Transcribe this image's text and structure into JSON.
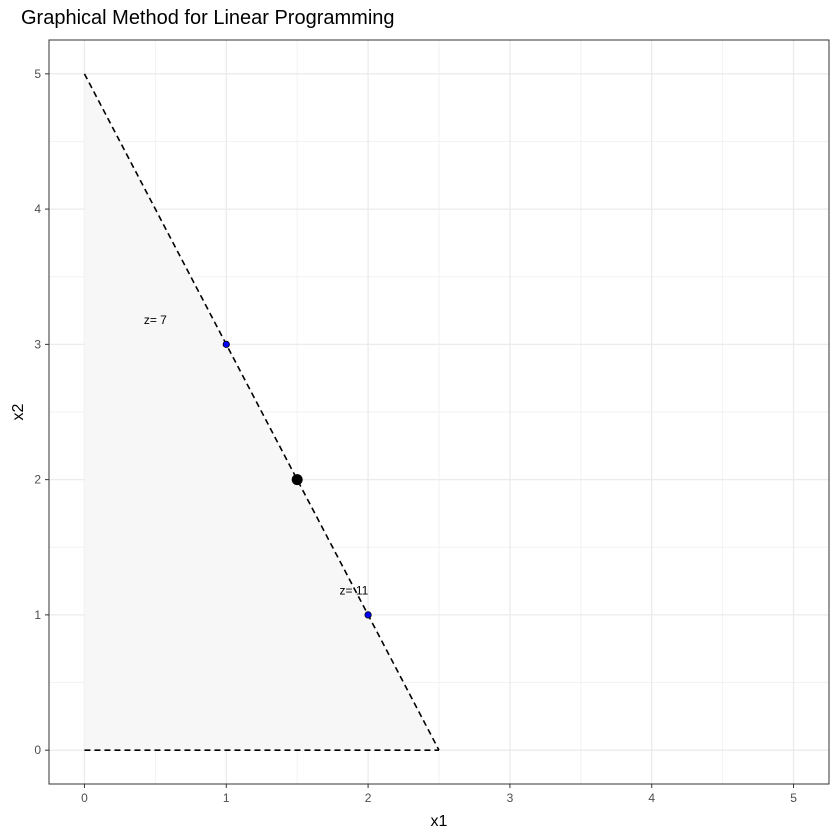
{
  "chart_data": {
    "type": "scatter",
    "title": "Graphical Method for Linear Programming",
    "xlabel": "x1",
    "ylabel": "x2",
    "xlim": [
      -0.25,
      5.25
    ],
    "ylim": [
      -0.25,
      5.25
    ],
    "x_ticks": [
      0,
      1,
      2,
      3,
      4,
      5
    ],
    "y_ticks": [
      0,
      1,
      2,
      3,
      4,
      5
    ],
    "grid": true,
    "feasible_region": {
      "vertices": [
        [
          0,
          0
        ],
        [
          0,
          5
        ],
        [
          2.5,
          0
        ]
      ],
      "fill": "#f7f7f7"
    },
    "constraint_lines": [
      {
        "x": [
          0,
          2.5
        ],
        "y": [
          5,
          0
        ],
        "style": "dashed",
        "color": "#000000"
      },
      {
        "x": [
          0,
          2.5
        ],
        "y": [
          0,
          0
        ],
        "style": "dashed",
        "color": "#000000"
      }
    ],
    "points": [
      {
        "x": 1,
        "y": 3,
        "color": "#0000ff",
        "size": "small"
      },
      {
        "x": 1.5,
        "y": 2,
        "color": "#000000",
        "size": "large"
      },
      {
        "x": 2,
        "y": 1,
        "color": "#0000ff",
        "size": "small"
      }
    ],
    "annotations": [
      {
        "text": "z= 7",
        "x": 0.5,
        "y": 3.18
      },
      {
        "text": "z= 11",
        "x": 1.9,
        "y": 1.18
      }
    ]
  }
}
